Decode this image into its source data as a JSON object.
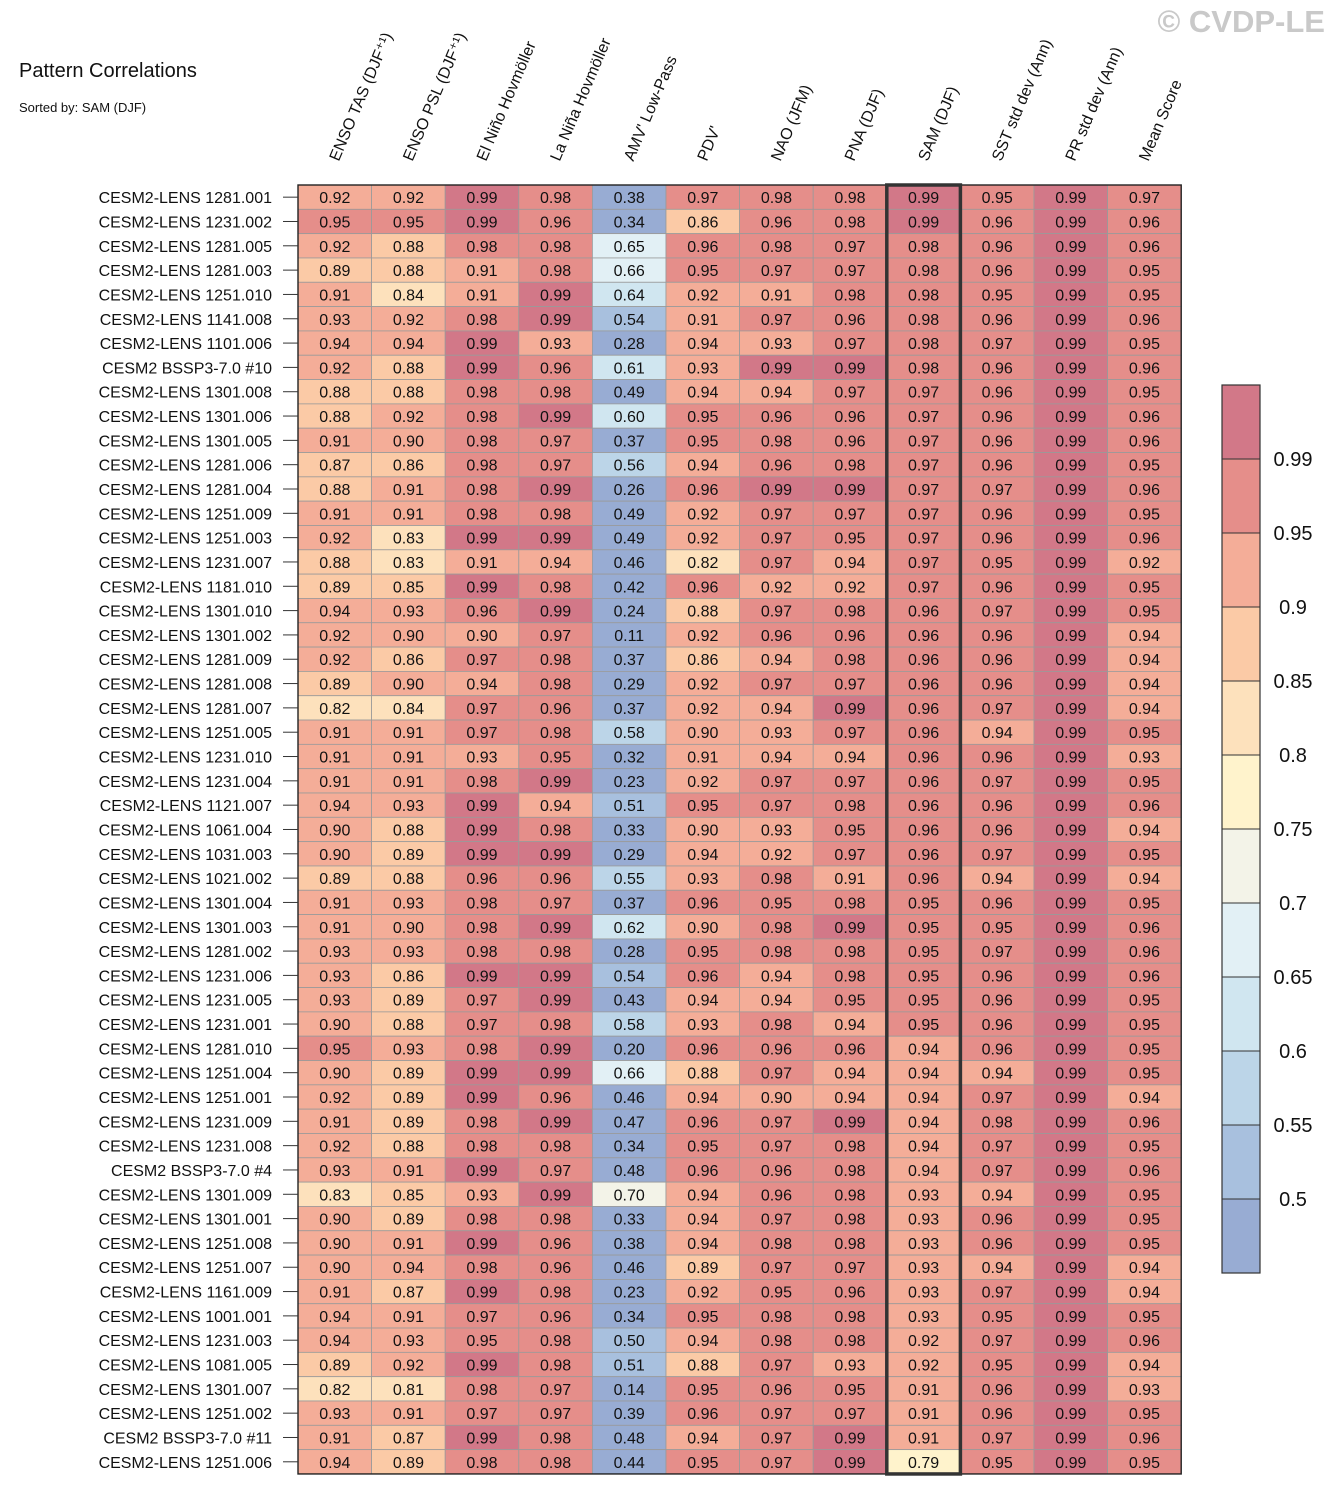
{
  "watermark": "© CVDP-LE",
  "chart_data": {
    "type": "heatmap",
    "title": "Pattern Correlations",
    "subtitle": "Sorted by: SAM (DJF)",
    "highlight_column": "SAM (DJF)",
    "columns": [
      "ENSO TAS (DJF⁺¹)",
      "ENSO PSL (DJF⁺¹)",
      "El Niño Hovmöller",
      "La Niña Hovmöller",
      "AMV' Low-Pass",
      "PDV'",
      "NAO (JFM)",
      "PNA (DJF)",
      "SAM (DJF)",
      "SST std dev (Ann)",
      "PR std dev (Ann)",
      "Mean Score"
    ],
    "rows": [
      "CESM2-LENS 1281.001",
      "CESM2-LENS 1231.002",
      "CESM2-LENS 1281.005",
      "CESM2-LENS 1281.003",
      "CESM2-LENS 1251.010",
      "CESM2-LENS 1141.008",
      "CESM2-LENS 1101.006",
      "CESM2 BSSP3-7.0 #10",
      "CESM2-LENS 1301.008",
      "CESM2-LENS 1301.006",
      "CESM2-LENS 1301.005",
      "CESM2-LENS 1281.006",
      "CESM2-LENS 1281.004",
      "CESM2-LENS 1251.009",
      "CESM2-LENS 1251.003",
      "CESM2-LENS 1231.007",
      "CESM2-LENS 1181.010",
      "CESM2-LENS 1301.010",
      "CESM2-LENS 1301.002",
      "CESM2-LENS 1281.009",
      "CESM2-LENS 1281.008",
      "CESM2-LENS 1281.007",
      "CESM2-LENS 1251.005",
      "CESM2-LENS 1231.010",
      "CESM2-LENS 1231.004",
      "CESM2-LENS 1121.007",
      "CESM2-LENS 1061.004",
      "CESM2-LENS 1031.003",
      "CESM2-LENS 1021.002",
      "CESM2-LENS 1301.004",
      "CESM2-LENS 1301.003",
      "CESM2-LENS 1281.002",
      "CESM2-LENS 1231.006",
      "CESM2-LENS 1231.005",
      "CESM2-LENS 1231.001",
      "CESM2-LENS 1281.010",
      "CESM2-LENS 1251.004",
      "CESM2-LENS 1251.001",
      "CESM2-LENS 1231.009",
      "CESM2-LENS 1231.008",
      "CESM2 BSSP3-7.0 #4",
      "CESM2-LENS 1301.009",
      "CESM2-LENS 1301.001",
      "CESM2-LENS 1251.008",
      "CESM2-LENS 1251.007",
      "CESM2-LENS 1161.009",
      "CESM2-LENS 1001.001",
      "CESM2-LENS 1231.003",
      "CESM2-LENS 1081.005",
      "CESM2-LENS 1301.007",
      "CESM2-LENS 1251.002",
      "CESM2 BSSP3-7.0 #11",
      "CESM2-LENS 1251.006"
    ],
    "values": [
      [
        "0.92",
        "0.92",
        "0.99",
        "0.98",
        "0.38",
        "0.97",
        "0.98",
        "0.98",
        "0.99",
        "0.95",
        "0.99",
        "0.97"
      ],
      [
        "0.95",
        "0.95",
        "0.99",
        "0.96",
        "0.34",
        "0.86",
        "0.96",
        "0.98",
        "0.99",
        "0.96",
        "0.99",
        "0.96"
      ],
      [
        "0.92",
        "0.88",
        "0.98",
        "0.98",
        "0.65",
        "0.96",
        "0.98",
        "0.97",
        "0.98",
        "0.96",
        "0.99",
        "0.96"
      ],
      [
        "0.89",
        "0.88",
        "0.91",
        "0.98",
        "0.66",
        "0.95",
        "0.97",
        "0.97",
        "0.98",
        "0.96",
        "0.99",
        "0.95"
      ],
      [
        "0.91",
        "0.84",
        "0.91",
        "0.99",
        "0.64",
        "0.92",
        "0.91",
        "0.98",
        "0.98",
        "0.95",
        "0.99",
        "0.95"
      ],
      [
        "0.93",
        "0.92",
        "0.98",
        "0.99",
        "0.54",
        "0.91",
        "0.97",
        "0.96",
        "0.98",
        "0.96",
        "0.99",
        "0.96"
      ],
      [
        "0.94",
        "0.94",
        "0.99",
        "0.93",
        "0.28",
        "0.94",
        "0.93",
        "0.97",
        "0.98",
        "0.97",
        "0.99",
        "0.95"
      ],
      [
        "0.92",
        "0.88",
        "0.99",
        "0.96",
        "0.61",
        "0.93",
        "0.99",
        "0.99",
        "0.98",
        "0.96",
        "0.99",
        "0.96"
      ],
      [
        "0.88",
        "0.88",
        "0.98",
        "0.98",
        "0.49",
        "0.94",
        "0.94",
        "0.97",
        "0.97",
        "0.96",
        "0.99",
        "0.95"
      ],
      [
        "0.88",
        "0.92",
        "0.98",
        "0.99",
        "0.60",
        "0.95",
        "0.96",
        "0.96",
        "0.97",
        "0.96",
        "0.99",
        "0.96"
      ],
      [
        "0.91",
        "0.90",
        "0.98",
        "0.97",
        "0.37",
        "0.95",
        "0.98",
        "0.96",
        "0.97",
        "0.96",
        "0.99",
        "0.96"
      ],
      [
        "0.87",
        "0.86",
        "0.98",
        "0.97",
        "0.56",
        "0.94",
        "0.96",
        "0.98",
        "0.97",
        "0.96",
        "0.99",
        "0.95"
      ],
      [
        "0.88",
        "0.91",
        "0.98",
        "0.99",
        "0.26",
        "0.96",
        "0.99",
        "0.99",
        "0.97",
        "0.97",
        "0.99",
        "0.96"
      ],
      [
        "0.91",
        "0.91",
        "0.98",
        "0.98",
        "0.49",
        "0.92",
        "0.97",
        "0.97",
        "0.97",
        "0.96",
        "0.99",
        "0.95"
      ],
      [
        "0.92",
        "0.83",
        "0.99",
        "0.99",
        "0.49",
        "0.92",
        "0.97",
        "0.95",
        "0.97",
        "0.96",
        "0.99",
        "0.96"
      ],
      [
        "0.88",
        "0.83",
        "0.91",
        "0.94",
        "0.46",
        "0.82",
        "0.97",
        "0.94",
        "0.97",
        "0.95",
        "0.99",
        "0.92"
      ],
      [
        "0.89",
        "0.85",
        "0.99",
        "0.98",
        "0.42",
        "0.96",
        "0.92",
        "0.92",
        "0.97",
        "0.96",
        "0.99",
        "0.95"
      ],
      [
        "0.94",
        "0.93",
        "0.96",
        "0.99",
        "0.24",
        "0.88",
        "0.97",
        "0.98",
        "0.96",
        "0.97",
        "0.99",
        "0.95"
      ],
      [
        "0.92",
        "0.90",
        "0.90",
        "0.97",
        "0.11",
        "0.92",
        "0.96",
        "0.96",
        "0.96",
        "0.96",
        "0.99",
        "0.94"
      ],
      [
        "0.92",
        "0.86",
        "0.97",
        "0.98",
        "0.37",
        "0.86",
        "0.94",
        "0.98",
        "0.96",
        "0.96",
        "0.99",
        "0.94"
      ],
      [
        "0.89",
        "0.90",
        "0.94",
        "0.98",
        "0.29",
        "0.92",
        "0.97",
        "0.97",
        "0.96",
        "0.96",
        "0.99",
        "0.94"
      ],
      [
        "0.82",
        "0.84",
        "0.97",
        "0.96",
        "0.37",
        "0.92",
        "0.94",
        "0.99",
        "0.96",
        "0.97",
        "0.99",
        "0.94"
      ],
      [
        "0.91",
        "0.91",
        "0.97",
        "0.98",
        "0.58",
        "0.90",
        "0.93",
        "0.97",
        "0.96",
        "0.94",
        "0.99",
        "0.95"
      ],
      [
        "0.91",
        "0.91",
        "0.93",
        "0.95",
        "0.32",
        "0.91",
        "0.94",
        "0.94",
        "0.96",
        "0.96",
        "0.99",
        "0.93"
      ],
      [
        "0.91",
        "0.91",
        "0.98",
        "0.99",
        "0.23",
        "0.92",
        "0.97",
        "0.97",
        "0.96",
        "0.97",
        "0.99",
        "0.95"
      ],
      [
        "0.94",
        "0.93",
        "0.99",
        "0.94",
        "0.51",
        "0.95",
        "0.97",
        "0.98",
        "0.96",
        "0.96",
        "0.99",
        "0.96"
      ],
      [
        "0.90",
        "0.88",
        "0.99",
        "0.98",
        "0.33",
        "0.90",
        "0.93",
        "0.95",
        "0.96",
        "0.96",
        "0.99",
        "0.94"
      ],
      [
        "0.90",
        "0.89",
        "0.99",
        "0.99",
        "0.29",
        "0.94",
        "0.92",
        "0.97",
        "0.96",
        "0.97",
        "0.99",
        "0.95"
      ],
      [
        "0.89",
        "0.88",
        "0.96",
        "0.96",
        "0.55",
        "0.93",
        "0.98",
        "0.91",
        "0.96",
        "0.94",
        "0.99",
        "0.94"
      ],
      [
        "0.91",
        "0.93",
        "0.98",
        "0.97",
        "0.37",
        "0.96",
        "0.95",
        "0.98",
        "0.95",
        "0.96",
        "0.99",
        "0.95"
      ],
      [
        "0.91",
        "0.90",
        "0.98",
        "0.99",
        "0.62",
        "0.90",
        "0.98",
        "0.99",
        "0.95",
        "0.95",
        "0.99",
        "0.96"
      ],
      [
        "0.93",
        "0.93",
        "0.98",
        "0.98",
        "0.28",
        "0.95",
        "0.98",
        "0.98",
        "0.95",
        "0.97",
        "0.99",
        "0.96"
      ],
      [
        "0.93",
        "0.86",
        "0.99",
        "0.99",
        "0.54",
        "0.96",
        "0.94",
        "0.98",
        "0.95",
        "0.96",
        "0.99",
        "0.96"
      ],
      [
        "0.93",
        "0.89",
        "0.97",
        "0.99",
        "0.43",
        "0.94",
        "0.94",
        "0.95",
        "0.95",
        "0.96",
        "0.99",
        "0.95"
      ],
      [
        "0.90",
        "0.88",
        "0.97",
        "0.98",
        "0.58",
        "0.93",
        "0.98",
        "0.94",
        "0.95",
        "0.96",
        "0.99",
        "0.95"
      ],
      [
        "0.95",
        "0.93",
        "0.98",
        "0.99",
        "0.20",
        "0.96",
        "0.96",
        "0.96",
        "0.94",
        "0.96",
        "0.99",
        "0.95"
      ],
      [
        "0.90",
        "0.89",
        "0.99",
        "0.99",
        "0.66",
        "0.88",
        "0.97",
        "0.94",
        "0.94",
        "0.94",
        "0.99",
        "0.95"
      ],
      [
        "0.92",
        "0.89",
        "0.99",
        "0.96",
        "0.46",
        "0.94",
        "0.90",
        "0.94",
        "0.94",
        "0.97",
        "0.99",
        "0.94"
      ],
      [
        "0.91",
        "0.89",
        "0.98",
        "0.99",
        "0.47",
        "0.96",
        "0.97",
        "0.99",
        "0.94",
        "0.98",
        "0.99",
        "0.96"
      ],
      [
        "0.92",
        "0.88",
        "0.98",
        "0.98",
        "0.34",
        "0.95",
        "0.97",
        "0.98",
        "0.94",
        "0.97",
        "0.99",
        "0.95"
      ],
      [
        "0.93",
        "0.91",
        "0.99",
        "0.97",
        "0.48",
        "0.96",
        "0.96",
        "0.98",
        "0.94",
        "0.97",
        "0.99",
        "0.96"
      ],
      [
        "0.83",
        "0.85",
        "0.93",
        "0.99",
        "0.70",
        "0.94",
        "0.96",
        "0.98",
        "0.93",
        "0.94",
        "0.99",
        "0.95"
      ],
      [
        "0.90",
        "0.89",
        "0.98",
        "0.98",
        "0.33",
        "0.94",
        "0.97",
        "0.98",
        "0.93",
        "0.96",
        "0.99",
        "0.95"
      ],
      [
        "0.90",
        "0.91",
        "0.99",
        "0.96",
        "0.38",
        "0.94",
        "0.98",
        "0.98",
        "0.93",
        "0.96",
        "0.99",
        "0.95"
      ],
      [
        "0.90",
        "0.94",
        "0.98",
        "0.96",
        "0.46",
        "0.89",
        "0.97",
        "0.97",
        "0.93",
        "0.94",
        "0.99",
        "0.94"
      ],
      [
        "0.91",
        "0.87",
        "0.99",
        "0.98",
        "0.23",
        "0.92",
        "0.95",
        "0.96",
        "0.93",
        "0.97",
        "0.99",
        "0.94"
      ],
      [
        "0.94",
        "0.91",
        "0.97",
        "0.96",
        "0.34",
        "0.95",
        "0.98",
        "0.98",
        "0.93",
        "0.95",
        "0.99",
        "0.95"
      ],
      [
        "0.94",
        "0.93",
        "0.95",
        "0.98",
        "0.50",
        "0.94",
        "0.98",
        "0.98",
        "0.92",
        "0.97",
        "0.99",
        "0.96"
      ],
      [
        "0.89",
        "0.92",
        "0.99",
        "0.98",
        "0.51",
        "0.88",
        "0.97",
        "0.93",
        "0.92",
        "0.95",
        "0.99",
        "0.94"
      ],
      [
        "0.82",
        "0.81",
        "0.98",
        "0.97",
        "0.14",
        "0.95",
        "0.96",
        "0.95",
        "0.91",
        "0.96",
        "0.99",
        "0.93"
      ],
      [
        "0.93",
        "0.91",
        "0.97",
        "0.97",
        "0.39",
        "0.96",
        "0.97",
        "0.97",
        "0.91",
        "0.96",
        "0.99",
        "0.95"
      ],
      [
        "0.91",
        "0.87",
        "0.99",
        "0.98",
        "0.48",
        "0.94",
        "0.97",
        "0.99",
        "0.91",
        "0.97",
        "0.99",
        "0.96"
      ],
      [
        "0.94",
        "0.89",
        "0.98",
        "0.98",
        "0.44",
        "0.95",
        "0.97",
        "0.99",
        "0.79",
        "0.95",
        "0.99",
        "0.95"
      ]
    ],
    "colorbar": {
      "levels": [
        0.5,
        0.55,
        0.6,
        0.65,
        0.7,
        0.75,
        0.8,
        0.85,
        0.9,
        0.95,
        0.99
      ],
      "labels": [
        "0.5",
        "0.55",
        "0.6",
        "0.65",
        "0.7",
        "0.75",
        "0.8",
        "0.85",
        "0.9",
        "0.95",
        "0.99"
      ],
      "colors": [
        "#98acd3",
        "#a8c0de",
        "#bcd5e8",
        "#d0e6f0",
        "#e2f0f5",
        "#f3f3e8",
        "#fff3cc",
        "#fde1bc",
        "#fbcaa6",
        "#f4ad98",
        "#e58e8a",
        "#d27888"
      ]
    }
  }
}
